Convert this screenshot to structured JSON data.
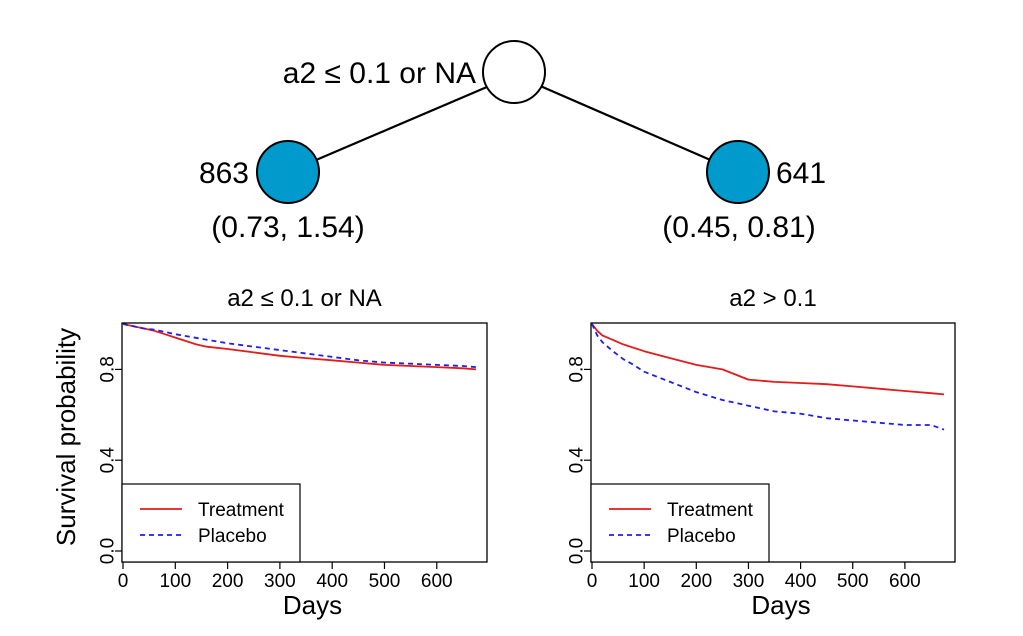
{
  "tree": {
    "split_label": "a2 ≤ 0.1 or NA",
    "left_node": {
      "count": "863",
      "interval": "(0.73, 1.54)"
    },
    "right_node": {
      "count": "641",
      "interval": "(0.45, 0.81)"
    },
    "node_color": "#009ACD",
    "root_color": "#ffffff"
  },
  "colors": {
    "treatment": "#e41a1c",
    "placebo": "#1f1fe6"
  },
  "chart_data": [
    {
      "type": "line",
      "title": "a2 ≤ 0.1 or NA",
      "xlabel": "Days",
      "ylabel": "Survival probability",
      "xlim": [
        0,
        700
      ],
      "ylim": [
        0,
        1
      ],
      "xticks": [
        0,
        100,
        200,
        300,
        400,
        500,
        600
      ],
      "yticks": [
        "0.0",
        "0.4",
        "0.8"
      ],
      "legend": "bottom-left",
      "series": [
        {
          "name": "Treatment",
          "style": "solid",
          "x": [
            0,
            20,
            40,
            60,
            80,
            100,
            120,
            140,
            160,
            200,
            250,
            300,
            350,
            400,
            450,
            500,
            550,
            600,
            650,
            675
          ],
          "y": [
            1.0,
            0.99,
            0.98,
            0.97,
            0.955,
            0.94,
            0.925,
            0.91,
            0.9,
            0.89,
            0.875,
            0.86,
            0.85,
            0.84,
            0.83,
            0.82,
            0.815,
            0.81,
            0.805,
            0.8
          ]
        },
        {
          "name": "Placebo",
          "style": "dashed",
          "x": [
            0,
            20,
            40,
            60,
            80,
            100,
            150,
            200,
            250,
            300,
            350,
            400,
            450,
            500,
            550,
            600,
            650,
            675
          ],
          "y": [
            1.0,
            0.99,
            0.98,
            0.975,
            0.965,
            0.955,
            0.935,
            0.915,
            0.9,
            0.885,
            0.87,
            0.855,
            0.84,
            0.83,
            0.825,
            0.82,
            0.815,
            0.81
          ]
        }
      ]
    },
    {
      "type": "line",
      "title": "a2 > 0.1",
      "xlabel": "Days",
      "ylabel": "",
      "xlim": [
        0,
        700
      ],
      "ylim": [
        0,
        1
      ],
      "xticks": [
        0,
        100,
        200,
        300,
        400,
        500,
        600
      ],
      "yticks": [
        "0.0",
        "0.4",
        "0.8"
      ],
      "legend": "bottom-left",
      "series": [
        {
          "name": "Treatment",
          "style": "solid",
          "x": [
            0,
            10,
            20,
            40,
            60,
            80,
            100,
            150,
            200,
            250,
            300,
            350,
            400,
            450,
            500,
            550,
            600,
            650,
            675
          ],
          "y": [
            1.0,
            0.97,
            0.95,
            0.93,
            0.91,
            0.895,
            0.88,
            0.85,
            0.82,
            0.8,
            0.755,
            0.745,
            0.74,
            0.735,
            0.725,
            0.715,
            0.705,
            0.695,
            0.69
          ]
        },
        {
          "name": "Placebo",
          "style": "dashed",
          "x": [
            0,
            10,
            20,
            40,
            60,
            80,
            100,
            150,
            200,
            250,
            300,
            350,
            400,
            450,
            500,
            550,
            600,
            650,
            675
          ],
          "y": [
            1.0,
            0.95,
            0.92,
            0.88,
            0.845,
            0.82,
            0.79,
            0.745,
            0.7,
            0.665,
            0.64,
            0.615,
            0.605,
            0.585,
            0.575,
            0.565,
            0.555,
            0.555,
            0.535
          ]
        }
      ]
    }
  ]
}
